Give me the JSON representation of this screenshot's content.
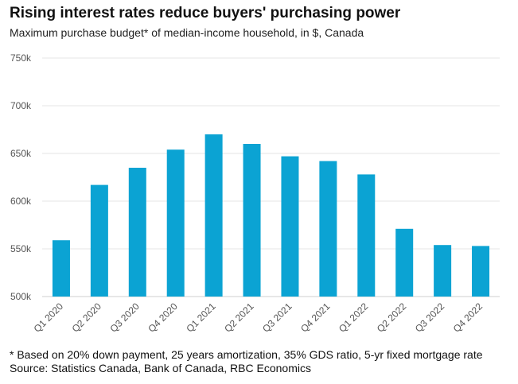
{
  "chart_data": {
    "type": "bar",
    "title": "Rising interest rates reduce buyers' purchasing power",
    "subtitle": "Maximum purchase budget* of median-income household, in $, Canada",
    "categories": [
      "Q1 2020",
      "Q2 2020",
      "Q3 2020",
      "Q4 2020",
      "Q1 2021",
      "Q2 2021",
      "Q3 2021",
      "Q4 2021",
      "Q1 2022",
      "Q2 2022",
      "Q3 2022",
      "Q4 2022"
    ],
    "values": [
      559000,
      617000,
      635000,
      654000,
      670000,
      660000,
      647000,
      642000,
      628000,
      571000,
      554000,
      553000
    ],
    "ylim": [
      500000,
      750000
    ],
    "yticks": [
      500000,
      550000,
      600000,
      650000,
      700000,
      750000
    ],
    "ytick_labels": [
      "500k",
      "550k",
      "600k",
      "650k",
      "700k",
      "750k"
    ],
    "xlabel": "",
    "ylabel": "",
    "grid": true,
    "bar_color": "#0ba3d3",
    "footnote": "* Based on 20% down payment, 25 years amortization, 35% GDS ratio, 5-yr fixed mortgage rate",
    "source": "Source: Statistics Canada, Bank of Canada, RBC Economics"
  }
}
